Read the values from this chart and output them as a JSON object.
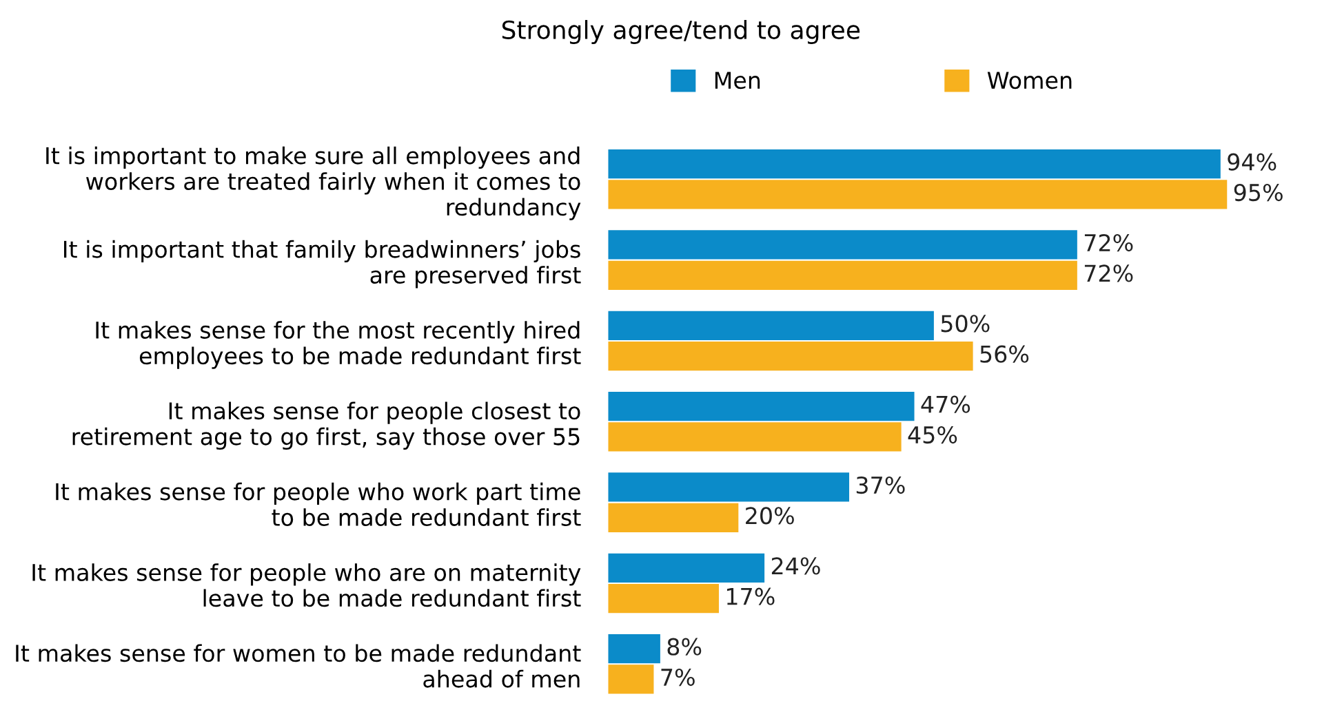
{
  "chart_data": {
    "type": "bar",
    "orientation": "horizontal",
    "title": "Strongly agree/tend to agree",
    "categories": [
      "It is important to make sure all employees and workers are treated fairly when it comes to redundancy",
      "It is important that family breadwinners’ jobs are preserved first",
      "It makes sense for the most recently hired employees to be made redundant first",
      "It makes sense for people closest to retirement age to go first, say those over 55",
      "It makes sense for people who work part time to be made redundant first",
      "It makes sense for people who are on maternity leave to be made redundant first",
      "It makes sense for women to be made redundant ahead of men"
    ],
    "series": [
      {
        "name": "Men",
        "color": "#0b8bc9",
        "values": [
          94,
          72,
          50,
          47,
          37,
          24,
          8
        ],
        "value_labels": [
          "94%",
          "72%",
          "50%",
          "47%",
          "37%",
          "24%",
          "8%"
        ]
      },
      {
        "name": "Women",
        "color": "#f7b11e",
        "values": [
          95,
          72,
          56,
          45,
          20,
          17,
          7
        ],
        "value_labels": [
          "95%",
          "72%",
          "56%",
          "45%",
          "20%",
          "17%",
          "7%"
        ]
      }
    ],
    "legend": "top",
    "grid": false
  }
}
